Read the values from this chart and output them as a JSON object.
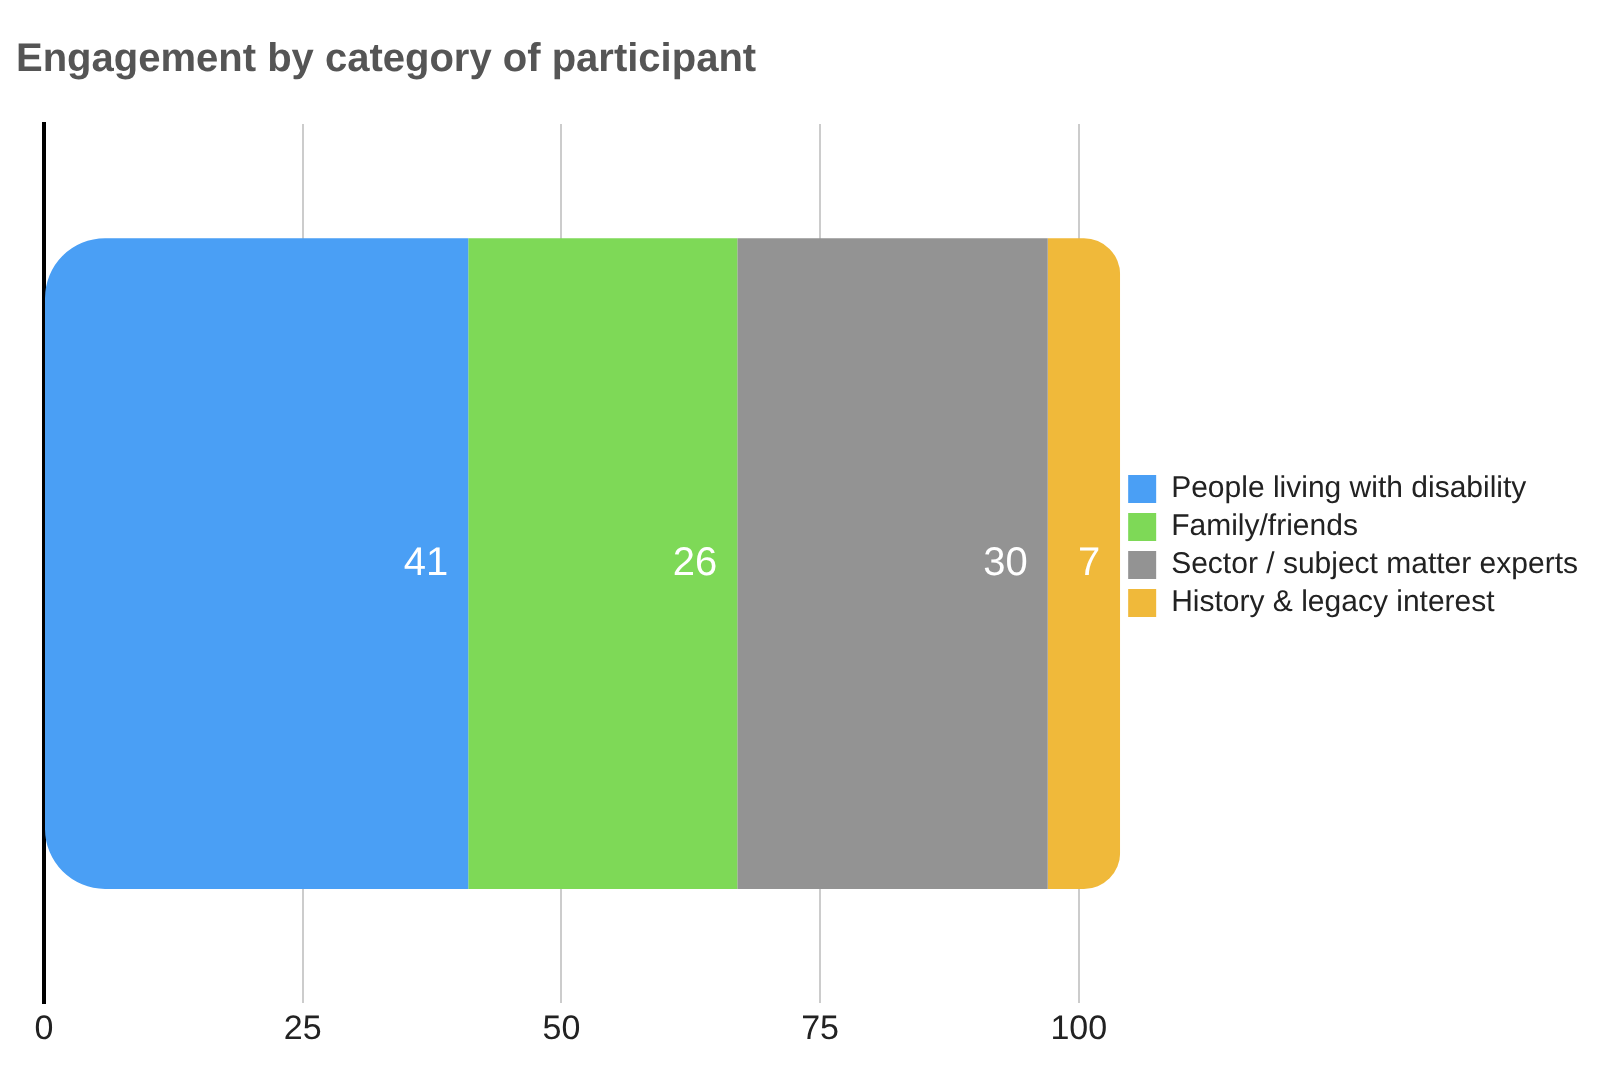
{
  "chart_data": {
    "type": "bar",
    "title": "Engagement by category of participant",
    "orientation": "horizontal",
    "stacked": true,
    "categories": [
      null
    ],
    "series": [
      {
        "name": "People living with disability",
        "color": "#4a9ff5",
        "values": [
          41
        ]
      },
      {
        "name": "Family/friends",
        "color": "#7ed957",
        "values": [
          26
        ]
      },
      {
        "name": "Sector / subject matter experts",
        "color": "#939393",
        "values": [
          30
        ]
      },
      {
        "name": "History & legacy interest",
        "color": "#f0b93a",
        "values": [
          7
        ]
      }
    ],
    "xlim": [
      0,
      104
    ],
    "xticks": [
      0,
      25,
      50,
      75,
      100
    ],
    "grid": "x",
    "legend": "right",
    "data_labels": true
  }
}
